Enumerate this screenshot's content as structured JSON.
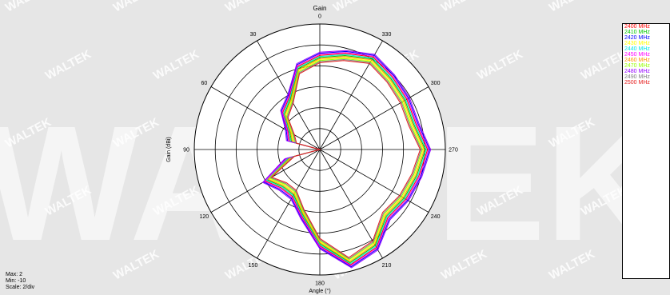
{
  "watermark": "WALTEK",
  "scale_info": {
    "max": "Max: 2",
    "min": "Min: -10",
    "scale": "Scale: 2/div"
  },
  "chart_data": {
    "type": "polar-line",
    "title": "Gain",
    "radial_label": "Gain  (dBi)",
    "angle_label": "Angle  (°)",
    "r_range": [
      -10,
      2
    ],
    "r_step": 2,
    "grid": true,
    "angle_direction": "counterclockwise",
    "zero_direction": "top",
    "angle_ticks": [
      "0",
      "30",
      "60",
      "90",
      "120",
      "150",
      "180",
      "210",
      "240",
      "270",
      "300",
      "330"
    ],
    "angles": [
      0,
      15,
      30,
      45,
      60,
      75,
      90,
      105,
      120,
      135,
      150,
      165,
      180,
      195,
      210,
      225,
      240,
      255,
      270,
      285,
      300,
      315,
      330,
      345
    ],
    "series": [
      {
        "name": "2400 MHz",
        "color": "#ff0000",
        "values": [
          -1.0,
          -1.8,
          -4.2,
          -5.0,
          -6.5,
          -7.0,
          -10.0,
          -6.8,
          -4.0,
          -4.8,
          -4.8,
          -3.4,
          -0.8,
          1.4,
          0.8,
          -0.8,
          -0.5,
          -0.2,
          0.3,
          -0.5,
          -0.4,
          -0.2,
          0.2,
          -0.5
        ]
      },
      {
        "name": "2410 MHz",
        "color": "#00c800",
        "values": [
          -1.2,
          -2.0,
          -4.4,
          -5.2,
          -6.7,
          -7.2,
          -10.0,
          -7.0,
          -4.2,
          -5.0,
          -5.0,
          -3.6,
          -1.0,
          1.2,
          0.6,
          -1.0,
          -0.7,
          -0.4,
          0.1,
          -0.7,
          -0.6,
          -0.4,
          0.0,
          -0.7
        ]
      },
      {
        "name": "2420 MHz",
        "color": "#0000ff",
        "values": [
          -0.8,
          -1.6,
          -4.0,
          -4.8,
          -6.3,
          -6.8,
          -10.0,
          -6.6,
          -3.8,
          -4.6,
          -4.6,
          -3.2,
          -0.6,
          1.6,
          1.0,
          -0.6,
          -0.3,
          0.0,
          0.5,
          -0.3,
          -0.2,
          0.0,
          0.4,
          -0.3
        ]
      },
      {
        "name": "2430 MHz",
        "color": "#ffff00",
        "values": [
          -1.4,
          -2.2,
          -4.6,
          -5.4,
          -6.9,
          -7.4,
          -10.0,
          -7.2,
          -4.4,
          -5.2,
          -5.2,
          -3.8,
          -1.2,
          1.0,
          0.4,
          -1.2,
          -0.9,
          -0.6,
          -0.1,
          -0.9,
          -0.8,
          -0.6,
          -0.2,
          -0.9
        ]
      },
      {
        "name": "2440 MHz",
        "color": "#00e6e6",
        "values": [
          -1.1,
          -1.9,
          -4.3,
          -5.1,
          -6.6,
          -7.1,
          -10.0,
          -6.9,
          -4.1,
          -4.9,
          -4.9,
          -3.5,
          -0.9,
          1.3,
          0.7,
          -0.9,
          -0.6,
          -0.3,
          0.2,
          -0.6,
          -0.5,
          -0.3,
          0.1,
          -0.6
        ]
      },
      {
        "name": "2450 MHz",
        "color": "#ff00ff",
        "values": [
          -0.9,
          -1.7,
          -4.1,
          -4.9,
          -6.4,
          -6.9,
          -10.0,
          -6.7,
          -3.9,
          -4.7,
          -4.7,
          -3.3,
          -0.7,
          1.5,
          0.9,
          -0.7,
          -0.4,
          -0.1,
          0.4,
          -0.4,
          -0.3,
          -0.1,
          0.3,
          -0.4
        ]
      },
      {
        "name": "2460 MHz",
        "color": "#ff9600",
        "values": [
          -1.3,
          -2.1,
          -4.5,
          -5.3,
          -6.8,
          -7.3,
          -10.0,
          -7.1,
          -4.3,
          -5.1,
          -5.1,
          -3.7,
          -1.1,
          1.1,
          0.5,
          -1.1,
          -0.8,
          -0.5,
          0.0,
          -0.8,
          -0.7,
          -0.5,
          -0.1,
          -0.8
        ]
      },
      {
        "name": "2470 MHz",
        "color": "#96ff00",
        "values": [
          -1.5,
          -2.3,
          -4.7,
          -5.5,
          -7.0,
          -7.5,
          -10.0,
          -7.3,
          -4.5,
          -5.3,
          -5.3,
          -3.9,
          -1.3,
          0.9,
          0.3,
          -1.3,
          -1.0,
          -0.7,
          -0.2,
          -1.0,
          -0.9,
          -0.7,
          -0.3,
          -1.0
        ]
      },
      {
        "name": "2480 MHz",
        "color": "#9600ff",
        "values": [
          -0.7,
          -1.5,
          -3.9,
          -4.7,
          -6.2,
          -6.7,
          -10.0,
          -6.5,
          -3.7,
          -4.5,
          -4.5,
          -3.1,
          -0.5,
          1.7,
          1.1,
          -0.5,
          -0.2,
          0.1,
          0.6,
          -0.2,
          -0.1,
          0.1,
          0.5,
          -0.2
        ]
      },
      {
        "name": "2490 MHz",
        "color": "#808080",
        "values": [
          -1.6,
          -2.4,
          -4.8,
          -5.6,
          -7.1,
          -7.6,
          -10.0,
          -7.4,
          -4.6,
          -5.4,
          -5.4,
          -4.0,
          -1.4,
          0.8,
          0.2,
          -1.4,
          -1.1,
          -0.8,
          -0.3,
          -1.1,
          -1.0,
          -0.8,
          -0.4,
          -1.1
        ]
      },
      {
        "name": "2500 MHz",
        "color": "#e61e1e",
        "values": [
          -1.7,
          -2.5,
          -4.9,
          -5.7,
          -7.2,
          -7.7,
          -10.0,
          -7.5,
          -4.7,
          -5.5,
          -5.5,
          -4.1,
          -1.5,
          0.7,
          0.1,
          -1.5,
          -1.2,
          -0.9,
          -0.4,
          -1.2,
          -1.1,
          -0.9,
          -0.5,
          -1.2
        ]
      }
    ]
  }
}
